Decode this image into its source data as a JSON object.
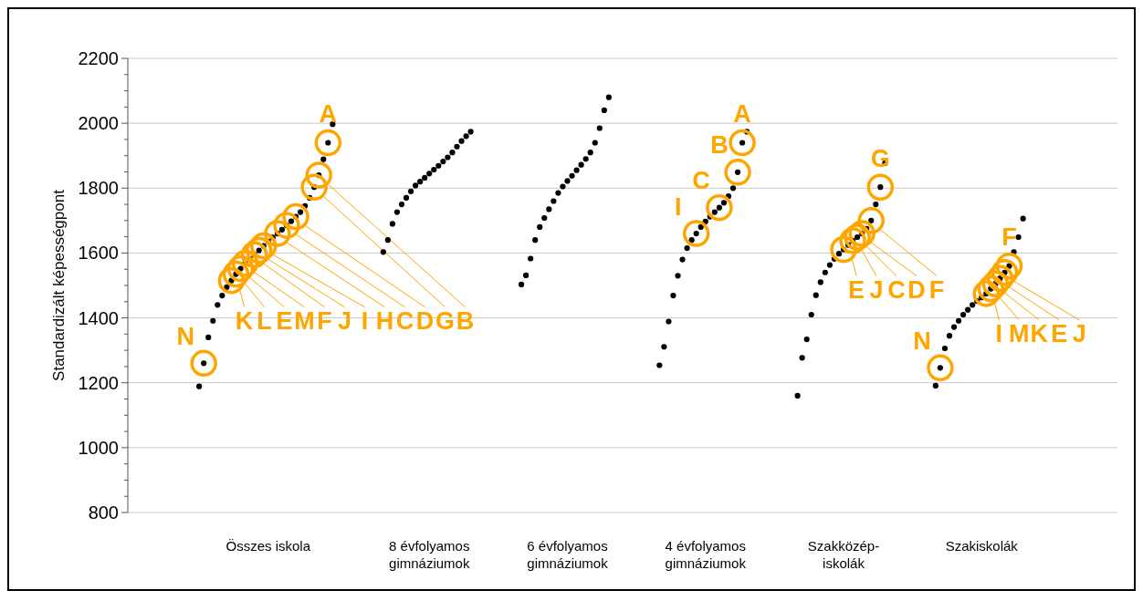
{
  "chart_data": {
    "type": "scatter",
    "ylabel": "Standardizált képességpont",
    "ylim": [
      800,
      2200
    ],
    "categories": [
      null,
      null,
      null,
      null,
      null,
      null,
      null,
      null,
      null,
      null,
      null,
      null,
      null,
      null,
      null,
      null,
      null,
      null,
      null,
      null,
      null,
      null,
      null,
      null,
      null,
      null,
      null,
      null,
      null,
      null,
      "Összes iskola",
      null,
      null,
      null,
      null,
      null,
      null,
      null,
      null,
      null,
      null,
      null,
      null,
      null,
      null,
      null,
      null,
      null,
      null,
      null,
      null,
      null,
      null,
      null,
      null,
      null,
      null,
      null,
      null,
      null,
      null,
      null,
      null,
      null,
      null,
      "8 évfolyamos\ngimnáziumok",
      null,
      null,
      null,
      null,
      null,
      null,
      null,
      null,
      null,
      null,
      null,
      null,
      null,
      null,
      null,
      null,
      null,
      null,
      null,
      null,
      null,
      null,
      null,
      null,
      null,
      null,
      null,
      null,
      null,
      "6 évfolyamos\ngimnáziumok",
      null,
      null,
      null,
      null,
      null,
      null,
      null,
      null,
      null,
      null,
      null,
      null,
      null,
      null,
      null,
      null,
      null,
      null,
      null,
      null,
      null,
      null,
      null,
      null,
      null,
      null,
      null,
      null,
      null,
      "4 évfolyamos\ngimnáziumok",
      null,
      null,
      null,
      null,
      null,
      null,
      null,
      null,
      null,
      null,
      null,
      null,
      null,
      null,
      null,
      null,
      null,
      null,
      null,
      null,
      null,
      null,
      null,
      null,
      null,
      null,
      null,
      null,
      null,
      "Szakközép-\niskolák",
      null,
      null,
      null,
      null,
      null,
      null,
      null,
      null,
      null,
      null,
      null,
      null,
      null,
      null,
      null,
      null,
      null,
      null,
      null,
      null,
      null,
      null,
      null,
      null,
      null,
      null,
      null,
      null,
      null,
      "Szakiskolák",
      null,
      null,
      null,
      null,
      null,
      null,
      null,
      null,
      null,
      null,
      null,
      null,
      null,
      null,
      null,
      null,
      null,
      null,
      null,
      null,
      null,
      null,
      null,
      null,
      null,
      null,
      null,
      null,
      null
    ],
    "yticks": [
      800,
      {
        "value": 850,
        "label": null
      },
      {
        "value": 900,
        "label": null
      },
      {
        "value": 950,
        "label": null
      },
      1000,
      {
        "value": 1050,
        "label": null
      },
      {
        "value": 1100,
        "label": null
      },
      {
        "value": 1150,
        "label": null
      },
      1200,
      {
        "value": 1250,
        "label": null
      },
      {
        "value": 1300,
        "label": null
      },
      {
        "value": 1350,
        "label": null
      },
      1400,
      {
        "value": 1450,
        "label": null
      },
      {
        "value": 1500,
        "label": null
      },
      {
        "value": 1550,
        "label": null
      },
      1600,
      {
        "value": 1650,
        "label": null
      },
      {
        "value": 1700,
        "label": null
      },
      {
        "value": 1750,
        "label": null
      },
      1800,
      {
        "value": 1850,
        "label": null
      },
      {
        "value": 1900,
        "label": null
      },
      {
        "value": 1950,
        "label": null
      },
      2000,
      {
        "value": 2050,
        "label": null
      },
      {
        "value": 2100,
        "label": null
      },
      {
        "value": 2150,
        "label": null
      },
      2200
    ],
    "grid": "y",
    "marker": "circle",
    "series": [
      {
        "color": "#000000",
        "values": [
          null,
          null,
          null,
          null,
          null,
          null,
          null,
          null,
          null,
          null,
          null,
          null,
          null,
          null,
          null,
          1189,
          1260,
          1340,
          1391,
          1440,
          1469,
          1495,
          1515,
          1535,
          1552,
          1568,
          1582,
          1595,
          1608,
          1622,
          1636,
          1648,
          1660,
          1672,
          1685,
          1698,
          1712,
          1726,
          1745,
          1770,
          1803,
          1840,
          1889,
          1940,
          1997,
          null,
          null,
          null,
          null,
          null,
          null,
          null,
          null,
          null,
          null,
          1603,
          1640,
          1690,
          1726,
          1750,
          1770,
          1790,
          1808,
          1820,
          1832,
          1845,
          1857,
          1869,
          1882,
          1895,
          1910,
          1928,
          1945,
          1960,
          1974,
          null,
          null,
          null,
          null,
          null,
          null,
          null,
          null,
          null,
          null,
          1503,
          1531,
          1583,
          1640,
          1680,
          1708,
          1735,
          1760,
          1785,
          1805,
          1822,
          1838,
          1855,
          1872,
          1890,
          1910,
          1940,
          1985,
          2040,
          2080,
          null,
          null,
          null,
          null,
          null,
          null,
          null,
          null,
          null,
          null,
          1254,
          1311,
          1389,
          1469,
          1530,
          1580,
          1615,
          1640,
          1660,
          1680,
          1697,
          1712,
          1726,
          1740,
          1755,
          1775,
          1800,
          1849,
          1940,
          1974,
          null,
          null,
          null,
          null,
          null,
          null,
          null,
          null,
          null,
          null,
          1160,
          1277,
          1334,
          1410,
          1470,
          1510,
          1540,
          1563,
          1582,
          1598,
          1611,
          1625,
          1638,
          1649,
          1660,
          1675,
          1700,
          1750,
          1803,
          1877,
          null,
          null,
          null,
          null,
          null,
          null,
          null,
          null,
          null,
          null,
          1191,
          1246,
          1306,
          1345,
          1372,
          1391,
          1410,
          1425,
          1440,
          1452,
          1463,
          1475,
          1490,
          1505,
          1522,
          1540,
          1560,
          1603,
          1649,
          1706,
          null,
          null,
          null,
          null,
          null,
          null,
          null,
          null,
          null,
          null,
          null,
          null,
          null,
          null,
          null,
          null,
          null,
          null,
          null,
          null
        ]
      },
      {
        "color": "#ffa500",
        "values": [
          null,
          null,
          null,
          null,
          null,
          null,
          null,
          null,
          null,
          null,
          null,
          null,
          null,
          null,
          null,
          null,
          1260,
          null,
          null,
          null,
          null,
          null,
          1515,
          1535,
          1552,
          1568,
          null,
          1595,
          1608,
          1622,
          null,
          null,
          1660,
          null,
          1685,
          null,
          1712,
          null,
          null,
          null,
          1803,
          1840,
          null,
          1940,
          null,
          null,
          null,
          null,
          null,
          null,
          null,
          null,
          null,
          null,
          null,
          null,
          null,
          null,
          null,
          null,
          null,
          null,
          null,
          null,
          null,
          null,
          null,
          null,
          null,
          null,
          null,
          null,
          null,
          null,
          null,
          null,
          null,
          null,
          null,
          null,
          null,
          null,
          null,
          null,
          null,
          null,
          null,
          null,
          null,
          null,
          null,
          null,
          null,
          null,
          null,
          null,
          null,
          null,
          null,
          null,
          null,
          null,
          null,
          null,
          null,
          null,
          null,
          null,
          null,
          null,
          null,
          null,
          null,
          null,
          null,
          null,
          null,
          null,
          null,
          null,
          null,
          null,
          null,
          1660,
          null,
          null,
          null,
          null,
          1740,
          null,
          null,
          null,
          1849,
          1940,
          null,
          null,
          null,
          null,
          null,
          null,
          null,
          null,
          null,
          null,
          null,
          null,
          null,
          null,
          null,
          null,
          null,
          null,
          null,
          null,
          null,
          1611,
          null,
          1638,
          1649,
          1660,
          null,
          1700,
          null,
          1803,
          null,
          null,
          null,
          null,
          null,
          null,
          null,
          null,
          null,
          null,
          null,
          null,
          1246,
          null,
          null,
          null,
          null,
          null,
          null,
          null,
          null,
          null,
          1475,
          1490,
          1505,
          1522,
          1540,
          1560,
          null,
          null,
          null,
          null,
          null,
          null,
          null,
          null,
          null,
          null,
          null,
          null,
          null,
          null,
          null,
          null,
          null,
          null,
          null,
          null,
          null,
          null,
          null
        ],
        "value_labels": [
          null,
          null,
          null,
          null,
          null,
          null,
          null,
          null,
          null,
          null,
          null,
          null,
          null,
          null,
          null,
          null,
          "N",
          null,
          null,
          null,
          null,
          null,
          "K",
          "L",
          "E",
          "M",
          null,
          "F",
          "J",
          "I",
          null,
          null,
          "H",
          null,
          "C",
          null,
          "D",
          null,
          null,
          null,
          "G",
          "B",
          null,
          "A",
          null,
          null,
          null,
          null,
          null,
          null,
          null,
          null,
          null,
          null,
          null,
          null,
          null,
          null,
          null,
          null,
          null,
          null,
          null,
          null,
          null,
          null,
          null,
          null,
          null,
          null,
          null,
          null,
          null,
          null,
          null,
          null,
          null,
          null,
          null,
          null,
          null,
          null,
          null,
          null,
          null,
          null,
          null,
          null,
          null,
          null,
          null,
          null,
          null,
          null,
          null,
          null,
          null,
          null,
          null,
          null,
          null,
          null,
          null,
          null,
          null,
          null,
          null,
          null,
          null,
          null,
          null,
          null,
          null,
          null,
          null,
          null,
          null,
          null,
          null,
          null,
          null,
          null,
          null,
          "I",
          null,
          null,
          null,
          null,
          "C",
          null,
          null,
          null,
          "B",
          "A",
          null,
          null,
          null,
          null,
          null,
          null,
          null,
          null,
          null,
          null,
          null,
          null,
          null,
          null,
          null,
          null,
          null,
          null,
          null,
          null,
          null,
          "E",
          null,
          "J",
          "C",
          "D",
          null,
          "F",
          null,
          "G",
          null,
          null,
          null,
          null,
          null,
          null,
          null,
          null,
          null,
          null,
          null,
          null,
          "N",
          null,
          null,
          null,
          null,
          null,
          null,
          null,
          null,
          null,
          "I",
          "M",
          "K",
          "E",
          "J",
          "F",
          null,
          null,
          null,
          null,
          null,
          null,
          null,
          null,
          null,
          null,
          null,
          null,
          null,
          null,
          null,
          null,
          null,
          null,
          null,
          null,
          null,
          null,
          null
        ]
      }
    ]
  }
}
